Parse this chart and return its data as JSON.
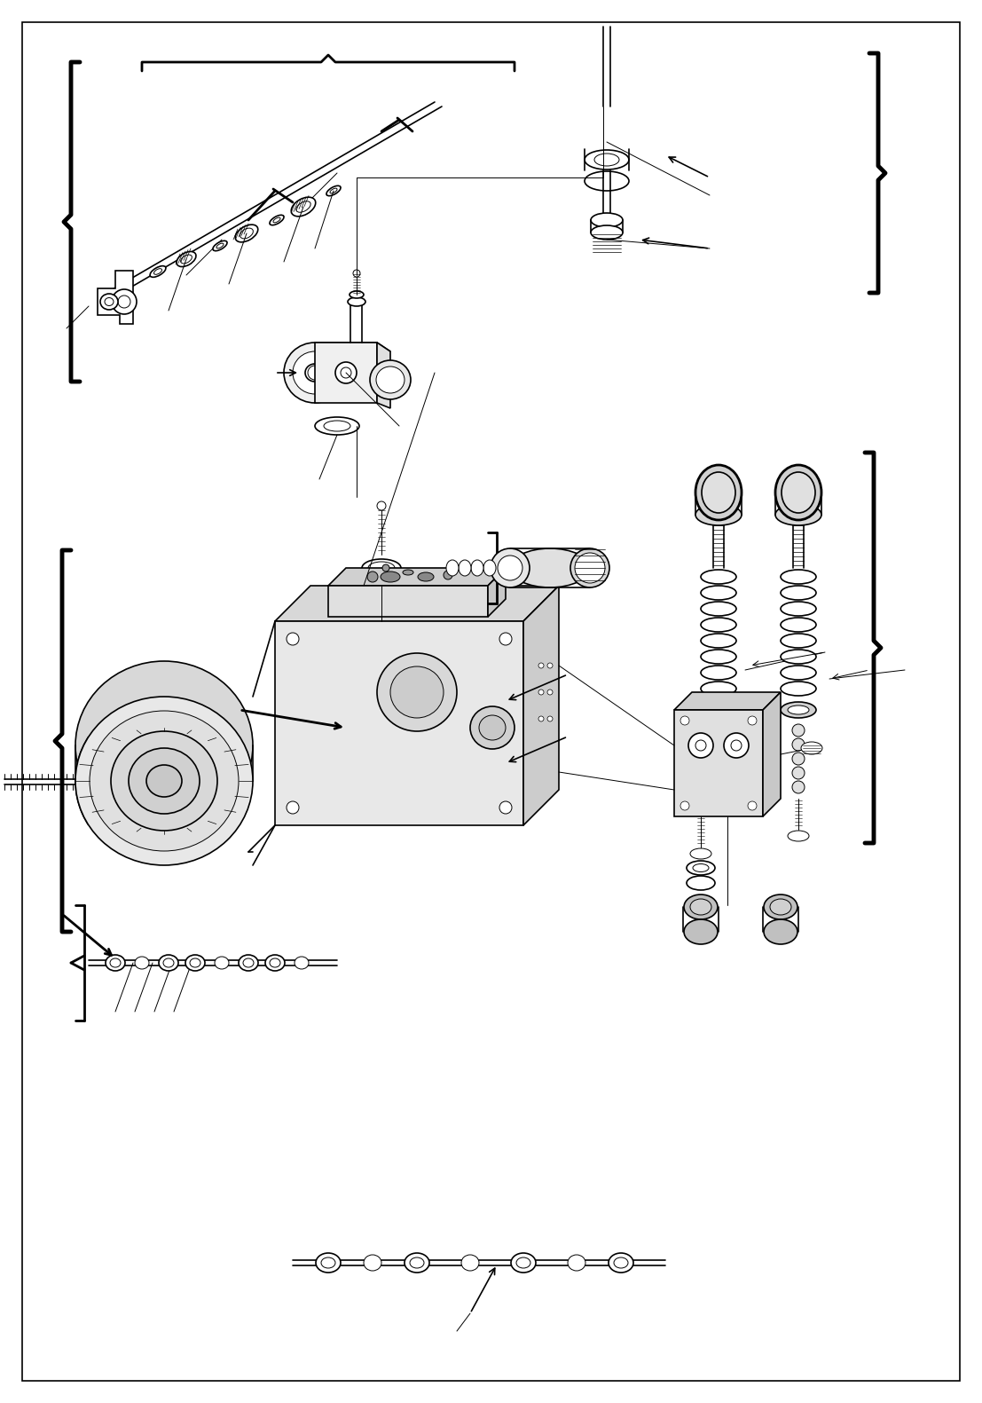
{
  "bg_color": "#ffffff",
  "line_color": "#000000",
  "fig_width": 11.07,
  "fig_height": 15.81,
  "dpi": 100
}
